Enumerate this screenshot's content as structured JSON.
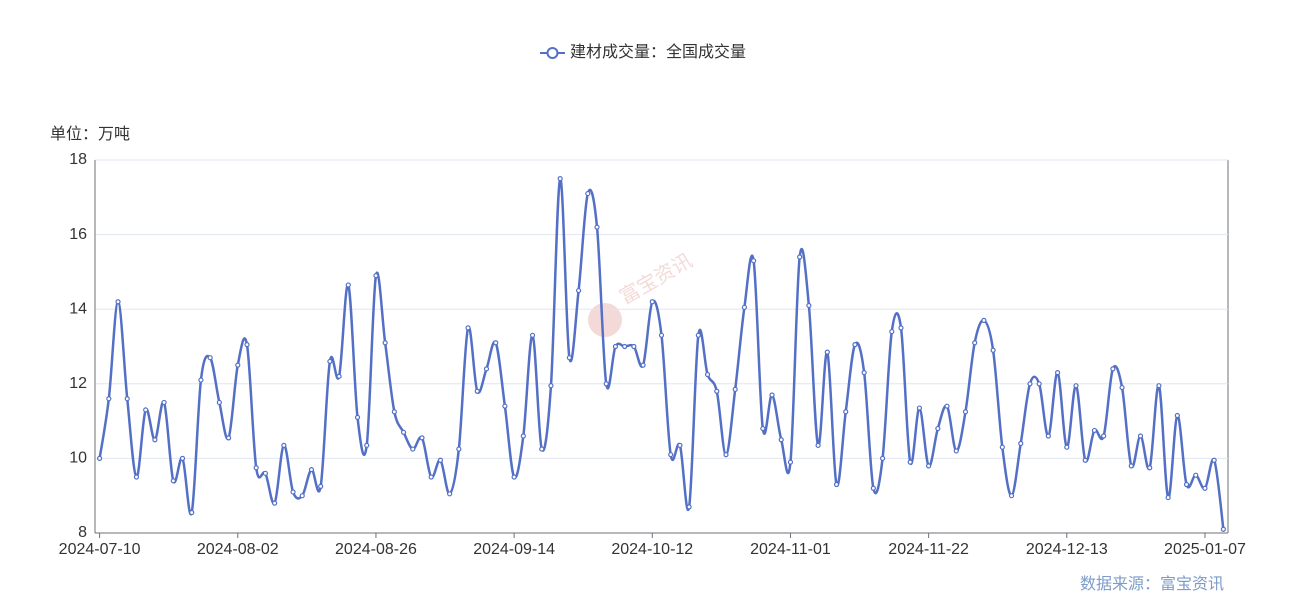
{
  "chart_data": {
    "type": "line",
    "y_axis_label": "单位：万吨",
    "source": "数据来源：富宝资讯",
    "watermark": "富宝资讯",
    "categories": [
      "2024-07-10",
      null,
      null,
      null,
      null,
      null,
      null,
      null,
      null,
      null,
      null,
      null,
      null,
      null,
      null,
      "2024-08-02",
      null,
      null,
      null,
      null,
      null,
      null,
      null,
      null,
      null,
      null,
      null,
      null,
      null,
      null,
      "2024-08-26",
      null,
      null,
      null,
      null,
      null,
      null,
      null,
      null,
      null,
      null,
      null,
      null,
      null,
      null,
      "2024-09-14",
      null,
      null,
      null,
      null,
      null,
      null,
      null,
      null,
      null,
      null,
      null,
      null,
      null,
      null,
      "2024-10-12",
      null,
      null,
      null,
      null,
      null,
      null,
      null,
      null,
      null,
      null,
      null,
      null,
      null,
      null,
      "2024-11-01",
      null,
      null,
      null,
      null,
      null,
      null,
      null,
      null,
      null,
      null,
      null,
      null,
      null,
      null,
      "2024-11-22",
      null,
      null,
      null,
      null,
      null,
      null,
      null,
      null,
      null,
      null,
      null,
      null,
      null,
      null,
      "2024-12-13",
      null,
      null,
      null,
      null,
      null,
      null,
      null,
      null,
      null,
      null,
      null,
      null,
      null,
      null,
      "2025-01-07",
      null,
      null
    ],
    "series": [
      {
        "name": "建材成交量：全国成交量",
        "color": "#5470c6",
        "values": [
          10.0,
          11.6,
          14.2,
          11.6,
          9.5,
          11.3,
          10.5,
          11.5,
          9.4,
          10.0,
          8.55,
          12.1,
          12.7,
          11.5,
          10.55,
          12.5,
          13.05,
          9.75,
          9.6,
          8.8,
          10.35,
          9.1,
          9.0,
          9.7,
          9.25,
          12.6,
          12.2,
          14.65,
          11.1,
          10.35,
          14.9,
          13.1,
          11.25,
          10.7,
          10.25,
          10.55,
          9.5,
          9.95,
          9.05,
          10.25,
          13.5,
          11.8,
          12.4,
          13.1,
          11.4,
          9.5,
          10.6,
          13.3,
          10.25,
          11.95,
          17.5,
          12.7,
          14.5,
          17.1,
          16.2,
          12.0,
          13.0,
          13.0,
          13.0,
          12.5,
          14.2,
          13.3,
          10.1,
          10.35,
          8.7,
          13.3,
          12.25,
          11.8,
          10.1,
          11.85,
          14.05,
          15.3,
          10.8,
          11.7,
          10.5,
          9.9,
          15.4,
          14.1,
          10.35,
          12.85,
          9.3,
          11.25,
          13.05,
          12.3,
          9.2,
          10.0,
          13.4,
          13.5,
          9.9,
          11.35,
          9.8,
          10.8,
          11.4,
          10.2,
          11.25,
          13.1,
          13.7,
          12.9,
          10.3,
          9.0,
          10.4,
          12.0,
          12.0,
          10.6,
          12.3,
          10.3,
          11.95,
          9.95,
          10.75,
          10.6,
          12.4,
          11.9,
          9.8,
          10.6,
          9.75,
          11.95,
          8.95,
          11.15,
          9.3,
          9.55,
          9.2,
          9.95,
          8.1
        ]
      }
    ],
    "ylim": [
      8,
      18
    ],
    "yticks": [
      8,
      10,
      12,
      14,
      16,
      18
    ],
    "grid": true,
    "legend": "top"
  }
}
